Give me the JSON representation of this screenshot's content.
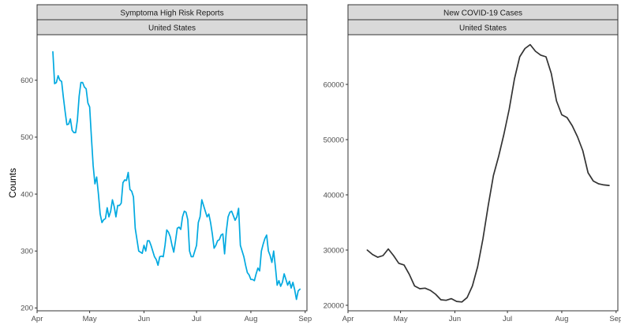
{
  "ylabel": "Counts",
  "x_tick_labels": [
    "Apr",
    "May",
    "Jun",
    "Jul",
    "Aug",
    "Sep"
  ],
  "chart_data": [
    {
      "type": "line",
      "title": "Symptoma High Risk Reports",
      "facet": "United States",
      "color": "#00a9e0",
      "x_domain": [
        "2020-04-01",
        "2020-09-02"
      ],
      "ylim": [
        195,
        680
      ],
      "y_ticks": [
        200,
        300,
        400,
        500,
        600
      ],
      "grid": false,
      "series": [
        {
          "x": [
            "2020-04-10",
            "2020-04-11",
            "2020-04-12",
            "2020-04-13",
            "2020-04-14",
            "2020-04-15",
            "2020-04-16",
            "2020-04-17",
            "2020-04-18",
            "2020-04-19",
            "2020-04-20",
            "2020-04-21",
            "2020-04-22",
            "2020-04-23",
            "2020-04-24",
            "2020-04-25",
            "2020-04-26",
            "2020-04-27",
            "2020-04-28",
            "2020-04-29",
            "2020-04-30",
            "2020-05-01",
            "2020-05-02",
            "2020-05-03",
            "2020-05-04",
            "2020-05-05",
            "2020-05-06",
            "2020-05-07",
            "2020-05-08",
            "2020-05-09",
            "2020-05-10",
            "2020-05-11",
            "2020-05-12",
            "2020-05-13",
            "2020-05-14",
            "2020-05-15",
            "2020-05-16",
            "2020-05-17",
            "2020-05-18",
            "2020-05-19",
            "2020-05-20",
            "2020-05-21",
            "2020-05-22",
            "2020-05-23",
            "2020-05-24",
            "2020-05-25",
            "2020-05-26",
            "2020-05-27",
            "2020-05-28",
            "2020-05-29",
            "2020-05-30",
            "2020-05-31",
            "2020-06-01",
            "2020-06-02",
            "2020-06-03",
            "2020-06-04",
            "2020-06-05",
            "2020-06-06",
            "2020-06-07",
            "2020-06-08",
            "2020-06-09",
            "2020-06-10",
            "2020-06-11",
            "2020-06-12",
            "2020-06-13",
            "2020-06-14",
            "2020-06-15",
            "2020-06-16",
            "2020-06-17",
            "2020-06-18",
            "2020-06-19",
            "2020-06-20",
            "2020-06-21",
            "2020-06-22",
            "2020-06-23",
            "2020-06-24",
            "2020-06-25",
            "2020-06-26",
            "2020-06-27",
            "2020-06-28",
            "2020-06-29",
            "2020-06-30",
            "2020-07-01",
            "2020-07-02",
            "2020-07-03",
            "2020-07-04",
            "2020-07-05",
            "2020-07-06",
            "2020-07-07",
            "2020-07-08",
            "2020-07-09",
            "2020-07-10",
            "2020-07-11",
            "2020-07-12",
            "2020-07-13",
            "2020-07-14",
            "2020-07-15",
            "2020-07-16",
            "2020-07-17",
            "2020-07-18",
            "2020-07-19",
            "2020-07-20",
            "2020-07-21",
            "2020-07-22",
            "2020-07-23",
            "2020-07-24",
            "2020-07-25",
            "2020-07-26",
            "2020-07-27",
            "2020-07-28",
            "2020-07-29",
            "2020-07-30",
            "2020-07-31",
            "2020-08-01",
            "2020-08-02",
            "2020-08-03",
            "2020-08-04",
            "2020-08-05",
            "2020-08-06",
            "2020-08-07",
            "2020-08-08",
            "2020-08-09",
            "2020-08-10",
            "2020-08-11",
            "2020-08-12",
            "2020-08-13",
            "2020-08-14",
            "2020-08-15",
            "2020-08-16",
            "2020-08-17",
            "2020-08-18",
            "2020-08-19",
            "2020-08-20",
            "2020-08-21",
            "2020-08-22",
            "2020-08-23",
            "2020-08-24",
            "2020-08-25",
            "2020-08-26",
            "2020-08-27",
            "2020-08-28",
            "2020-08-29"
          ],
          "y": [
            650,
            594,
            596,
            608,
            600,
            598,
            570,
            545,
            522,
            523,
            532,
            512,
            508,
            508,
            530,
            572,
            596,
            596,
            588,
            585,
            560,
            553,
            500,
            450,
            418,
            430,
            400,
            365,
            350,
            355,
            357,
            376,
            360,
            370,
            390,
            378,
            360,
            380,
            380,
            384,
            420,
            425,
            424,
            438,
            408,
            405,
            395,
            340,
            320,
            300,
            298,
            296,
            310,
            300,
            318,
            318,
            310,
            300,
            290,
            285,
            275,
            290,
            291,
            290,
            310,
            337,
            333,
            325,
            310,
            298,
            318,
            340,
            342,
            338,
            360,
            370,
            368,
            355,
            300,
            290,
            290,
            300,
            310,
            350,
            360,
            390,
            380,
            370,
            360,
            365,
            350,
            330,
            305,
            310,
            318,
            320,
            328,
            330,
            295,
            335,
            360,
            368,
            370,
            362,
            354,
            360,
            375,
            310,
            300,
            290,
            275,
            262,
            258,
            250,
            250,
            248,
            260,
            270,
            265,
            300,
            312,
            322,
            328,
            300,
            292,
            280,
            300,
            272,
            240,
            248,
            238,
            245,
            260,
            250,
            240,
            247,
            235,
            245,
            232,
            215,
            230,
            233
          ],
          "_": ""
        }
      ]
    },
    {
      "type": "line",
      "title": "New COVID-19 Cases",
      "facet": "United States",
      "color": "#333333",
      "x_domain": [
        "2020-04-01",
        "2020-09-02"
      ],
      "ylim": [
        19000,
        69000
      ],
      "y_ticks": [
        20000,
        30000,
        40000,
        50000,
        60000
      ],
      "grid": false,
      "series": [
        {
          "x": [
            "2020-04-12",
            "2020-04-15",
            "2020-04-18",
            "2020-04-21",
            "2020-04-24",
            "2020-04-27",
            "2020-04-30",
            "2020-05-03",
            "2020-05-06",
            "2020-05-09",
            "2020-05-12",
            "2020-05-15",
            "2020-05-18",
            "2020-05-21",
            "2020-05-24",
            "2020-05-27",
            "2020-05-30",
            "2020-06-02",
            "2020-06-05",
            "2020-06-08",
            "2020-06-11",
            "2020-06-14",
            "2020-06-17",
            "2020-06-20",
            "2020-06-23",
            "2020-06-26",
            "2020-06-29",
            "2020-07-02",
            "2020-07-05",
            "2020-07-08",
            "2020-07-11",
            "2020-07-14",
            "2020-07-17",
            "2020-07-20",
            "2020-07-23",
            "2020-07-26",
            "2020-07-29",
            "2020-08-01",
            "2020-08-04",
            "2020-08-07",
            "2020-08-10",
            "2020-08-13",
            "2020-08-16",
            "2020-08-19",
            "2020-08-22",
            "2020-08-25",
            "2020-08-28"
          ],
          "y": [
            30000,
            29200,
            28700,
            29000,
            30200,
            29000,
            27600,
            27300,
            25600,
            23500,
            23000,
            23100,
            22700,
            22000,
            21000,
            20900,
            21200,
            20700,
            20600,
            21400,
            23500,
            27000,
            32000,
            38000,
            43500,
            47000,
            51000,
            55500,
            61000,
            65000,
            66500,
            67200,
            66000,
            65300,
            65000,
            62000,
            57000,
            54500,
            54000,
            52500,
            50500,
            48000,
            44000,
            42500,
            42000,
            41800,
            41700
          ],
          "_": ""
        }
      ]
    }
  ]
}
